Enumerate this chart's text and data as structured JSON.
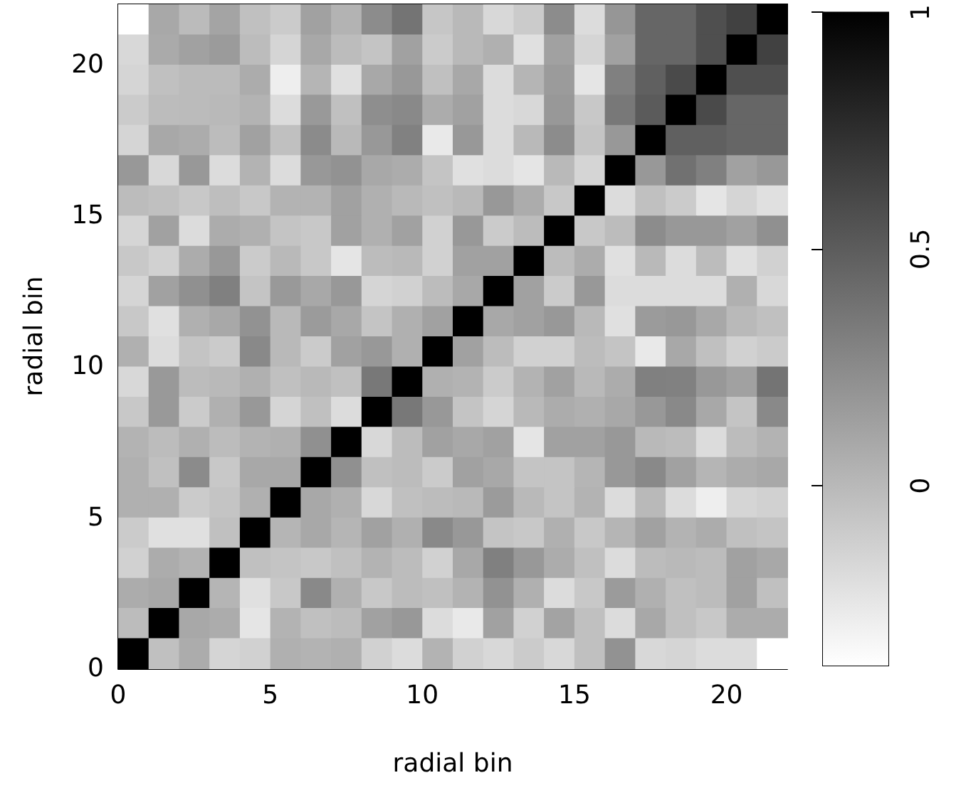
{
  "chart_data": {
    "type": "heatmap",
    "xlabel": "radial bin",
    "ylabel": "radial bin",
    "xlim": [
      0,
      22
    ],
    "xticks": [
      0,
      5,
      10,
      15,
      20
    ],
    "ylim": [
      0,
      22
    ],
    "yticks": [
      0,
      5,
      10,
      15,
      20
    ],
    "clim": [
      -0.38,
      1
    ],
    "cticks": [
      0,
      0.5,
      1
    ],
    "cells": [
      [
        -0.38,
        0.09,
        -0.01,
        0.11,
        -0.04,
        -0.1,
        0.13,
        0.03,
        0.24,
        0.37,
        -0.07,
        0.0,
        -0.17,
        -0.1,
        0.24,
        -0.19,
        0.19,
        0.45,
        0.45,
        0.57,
        0.65,
        1
      ],
      [
        -0.17,
        0.08,
        0.13,
        0.16,
        -0.02,
        -0.15,
        0.09,
        -0.02,
        -0.06,
        0.13,
        -0.1,
        0.0,
        0.05,
        -0.21,
        0.13,
        -0.15,
        0.13,
        0.45,
        0.45,
        0.57,
        1,
        0.65
      ],
      [
        -0.15,
        -0.04,
        -0.01,
        -0.01,
        0.07,
        -0.29,
        0.02,
        -0.21,
        0.09,
        0.18,
        -0.04,
        0.09,
        -0.19,
        0.02,
        0.16,
        -0.24,
        0.31,
        0.48,
        0.6,
        1,
        0.57,
        0.57
      ],
      [
        -0.1,
        -0.02,
        -0.01,
        0.0,
        0.03,
        -0.19,
        0.17,
        -0.04,
        0.23,
        0.26,
        0.07,
        0.13,
        -0.19,
        -0.17,
        0.18,
        -0.08,
        0.35,
        0.51,
        1,
        0.6,
        0.45,
        0.45
      ],
      [
        -0.15,
        0.09,
        0.07,
        -0.02,
        0.13,
        -0.04,
        0.25,
        0.0,
        0.18,
        0.3,
        -0.26,
        0.18,
        -0.19,
        0.0,
        0.24,
        -0.06,
        0.18,
        1,
        0.48,
        0.48,
        0.45,
        0.45
      ],
      [
        0.18,
        -0.17,
        0.18,
        -0.19,
        0.03,
        -0.19,
        0.18,
        0.21,
        0.09,
        0.07,
        -0.06,
        -0.21,
        -0.19,
        -0.24,
        0.0,
        -0.15,
        1,
        0.18,
        0.39,
        0.31,
        0.13,
        0.18
      ],
      [
        -0.02,
        -0.04,
        -0.08,
        -0.03,
        -0.08,
        0.03,
        0.03,
        0.13,
        0.05,
        0.0,
        -0.04,
        0.0,
        0.18,
        0.07,
        -0.08,
        1,
        -0.19,
        -0.04,
        -0.1,
        -0.24,
        -0.15,
        -0.21
      ],
      [
        -0.15,
        0.13,
        -0.19,
        0.07,
        0.05,
        -0.06,
        -0.08,
        0.13,
        0.05,
        0.13,
        -0.13,
        0.18,
        -0.1,
        -0.02,
        1,
        -0.08,
        -0.02,
        0.24,
        0.18,
        0.18,
        0.13,
        0.22
      ],
      [
        -0.08,
        -0.13,
        0.07,
        0.18,
        -0.1,
        0.0,
        -0.08,
        -0.24,
        -0.02,
        0.0,
        -0.13,
        0.13,
        0.13,
        1,
        -0.02,
        0.07,
        -0.21,
        0.0,
        -0.19,
        -0.02,
        -0.21,
        -0.13
      ],
      [
        -0.15,
        0.13,
        0.22,
        0.31,
        -0.06,
        0.17,
        0.09,
        0.18,
        -0.15,
        -0.13,
        -0.02,
        0.09,
        1,
        0.13,
        -0.1,
        0.18,
        -0.19,
        -0.19,
        -0.19,
        -0.19,
        0.05,
        -0.17
      ],
      [
        -0.08,
        -0.21,
        0.05,
        0.09,
        0.21,
        0.0,
        0.16,
        0.09,
        -0.06,
        0.05,
        0.13,
        1,
        0.09,
        0.13,
        0.18,
        0.0,
        -0.21,
        0.16,
        0.18,
        0.09,
        0.0,
        -0.04
      ],
      [
        0.05,
        -0.19,
        -0.06,
        -0.1,
        0.26,
        0.0,
        -0.1,
        0.13,
        0.18,
        0.05,
        1,
        0.13,
        -0.02,
        -0.13,
        -0.13,
        -0.02,
        -0.06,
        -0.26,
        0.09,
        -0.04,
        -0.13,
        -0.1
      ],
      [
        -0.17,
        0.17,
        -0.02,
        0.0,
        0.05,
        -0.04,
        0.0,
        -0.04,
        0.35,
        1,
        0.05,
        0.03,
        -0.1,
        0.03,
        0.13,
        0.0,
        0.07,
        0.31,
        0.3,
        0.18,
        0.13,
        0.37
      ],
      [
        -0.08,
        0.17,
        -0.1,
        0.05,
        0.18,
        -0.15,
        -0.04,
        -0.19,
        1,
        0.35,
        0.18,
        -0.06,
        -0.15,
        0.0,
        0.07,
        0.05,
        0.09,
        0.18,
        0.26,
        0.09,
        -0.06,
        0.26
      ],
      [
        0.03,
        -0.02,
        0.05,
        -0.02,
        0.03,
        0.05,
        0.22,
        1,
        -0.17,
        -0.02,
        0.13,
        0.09,
        0.13,
        -0.24,
        0.13,
        0.13,
        0.18,
        0.0,
        -0.02,
        -0.19,
        -0.02,
        0.03
      ],
      [
        0.05,
        -0.04,
        0.25,
        -0.08,
        0.09,
        0.09,
        1,
        0.22,
        -0.04,
        -0.02,
        -0.1,
        0.13,
        0.09,
        -0.06,
        -0.06,
        0.02,
        0.18,
        0.26,
        0.13,
        0.02,
        0.07,
        0.09
      ],
      [
        0.05,
        0.05,
        -0.1,
        -0.06,
        0.05,
        1,
        0.09,
        0.05,
        -0.17,
        -0.04,
        -0.02,
        0.0,
        0.16,
        0.0,
        -0.06,
        0.03,
        -0.19,
        0.0,
        -0.19,
        -0.29,
        -0.15,
        -0.13
      ],
      [
        -0.1,
        -0.21,
        -0.21,
        -0.04,
        1,
        0.02,
        0.09,
        0.02,
        0.13,
        0.05,
        0.26,
        0.18,
        -0.06,
        -0.08,
        0.05,
        -0.08,
        0.02,
        0.13,
        0.03,
        0.07,
        -0.04,
        -0.06
      ],
      [
        -0.13,
        0.07,
        0.03,
        1,
        -0.04,
        -0.06,
        -0.08,
        -0.04,
        0.03,
        -0.02,
        -0.13,
        0.09,
        0.31,
        0.18,
        0.07,
        -0.04,
        -0.19,
        -0.02,
        0.0,
        -0.02,
        0.13,
        0.09
      ],
      [
        0.07,
        0.09,
        1,
        0.02,
        -0.21,
        -0.08,
        0.26,
        0.05,
        -0.08,
        -0.02,
        -0.04,
        0.03,
        0.21,
        0.05,
        -0.19,
        -0.08,
        0.16,
        0.05,
        -0.04,
        -0.02,
        0.13,
        -0.04
      ],
      [
        -0.02,
        1,
        0.09,
        0.07,
        -0.24,
        0.03,
        -0.04,
        -0.02,
        0.13,
        0.18,
        -0.19,
        -0.26,
        0.13,
        -0.13,
        0.12,
        -0.04,
        -0.19,
        0.09,
        -0.04,
        -0.08,
        0.07,
        0.07
      ],
      [
        1,
        -0.04,
        0.07,
        -0.15,
        -0.13,
        0.05,
        0.03,
        0.05,
        -0.13,
        -0.19,
        0.03,
        -0.13,
        -0.17,
        -0.1,
        -0.17,
        -0.04,
        0.21,
        -0.17,
        -0.15,
        -0.19,
        -0.19,
        -0.38
      ]
    ]
  }
}
